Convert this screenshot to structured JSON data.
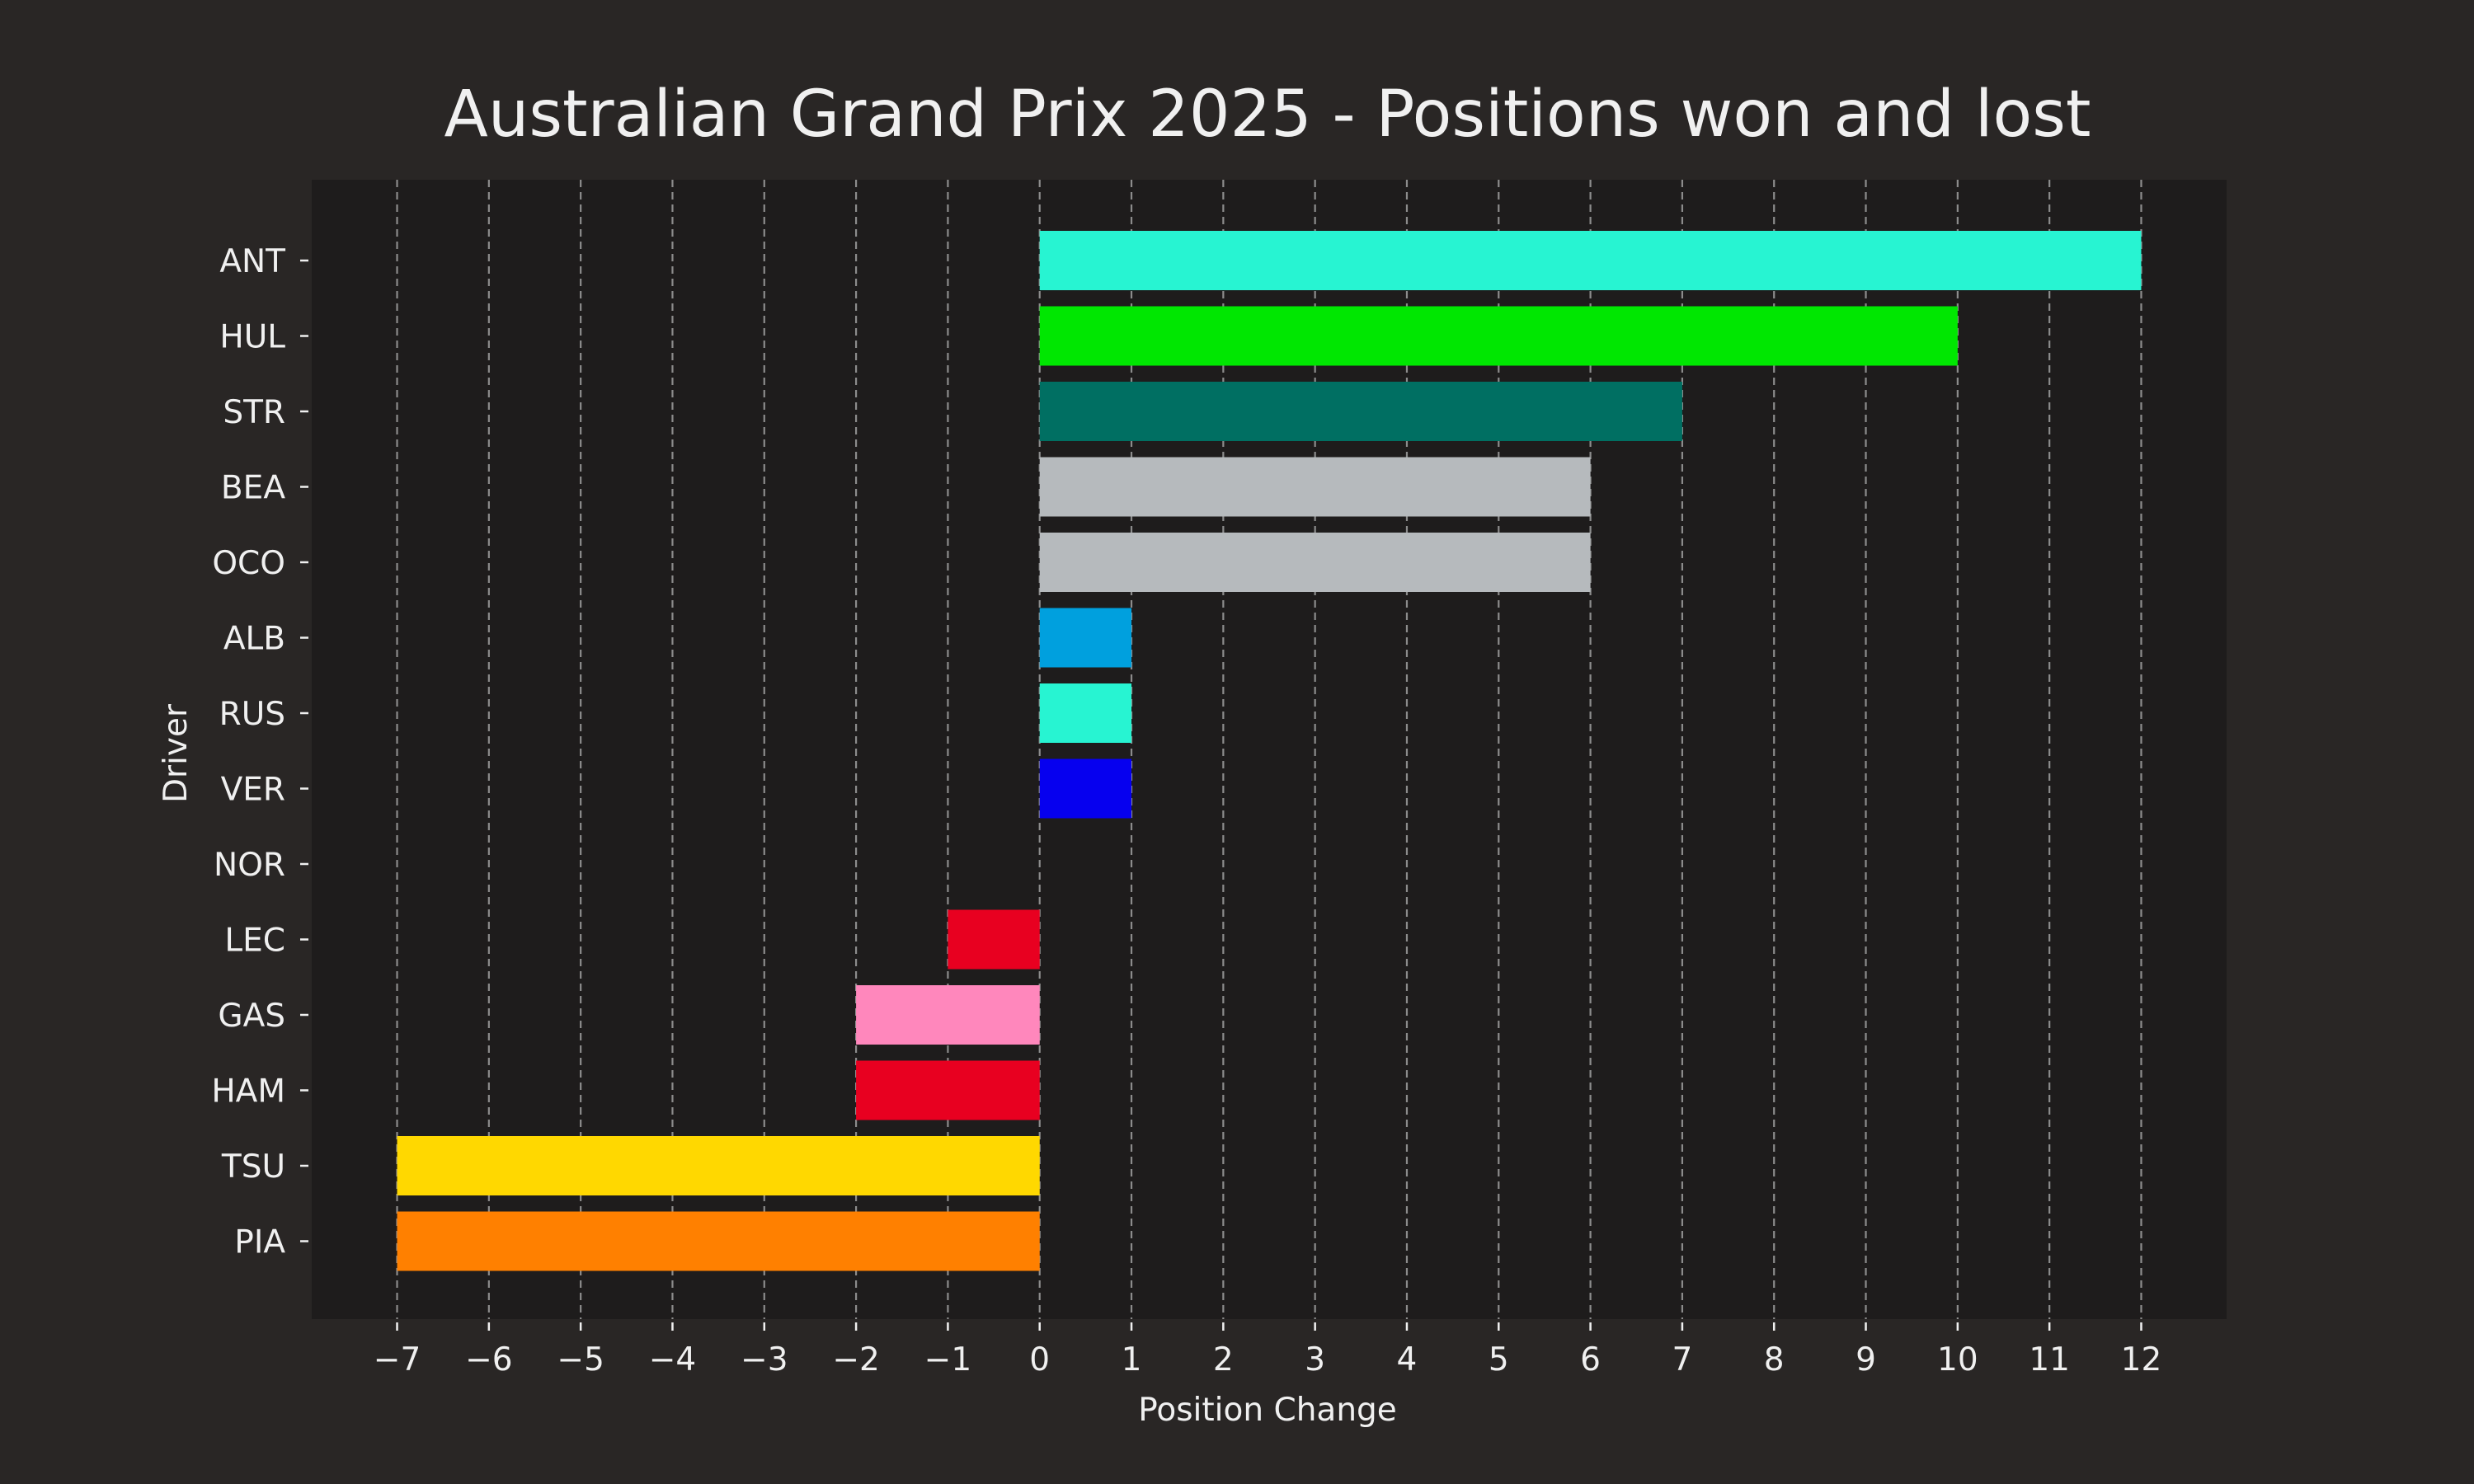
{
  "chart_data": {
    "type": "bar",
    "orientation": "horizontal",
    "title": "Australian Grand Prix 2025 -  Positions won and lost",
    "xlabel": "Position Change",
    "ylabel": "Driver",
    "xlim": [
      -7.93,
      12.93
    ],
    "xticks": [
      -7,
      -6,
      -5,
      -4,
      -3,
      -2,
      -1,
      0,
      1,
      2,
      3,
      4,
      5,
      6,
      7,
      8,
      9,
      10,
      11,
      12
    ],
    "xtick_labels": [
      "−7",
      "−6",
      "−5",
      "−4",
      "−3",
      "−2",
      "−1",
      "0",
      "1",
      "2",
      "3",
      "4",
      "5",
      "6",
      "7",
      "8",
      "9",
      "10",
      "11",
      "12"
    ],
    "grid": "vertical dashed",
    "legend": "none",
    "categories": [
      "ANT",
      "HUL",
      "STR",
      "BEA",
      "OCO",
      "ALB",
      "RUS",
      "VER",
      "NOR",
      "LEC",
      "GAS",
      "HAM",
      "TSU",
      "PIA"
    ],
    "values": [
      12,
      10,
      7,
      6,
      6,
      1,
      1,
      1,
      0,
      -1,
      -2,
      -2,
      -7,
      -7
    ],
    "colors": [
      "#27F4D2",
      "#00E701",
      "#006F62",
      "#B6BABD",
      "#B6BABD",
      "#00A0DE",
      "#27F4D2",
      "#0600EF",
      "#FF8000",
      "#E80020",
      "#FF87BC",
      "#E80020",
      "#FFD800",
      "#FF8000"
    ]
  },
  "theme": {
    "figure_background": "#292625",
    "plot_background": "#1e1c1c",
    "text_color": "#f0f0f0",
    "grid_color": "#8c8c8c"
  }
}
